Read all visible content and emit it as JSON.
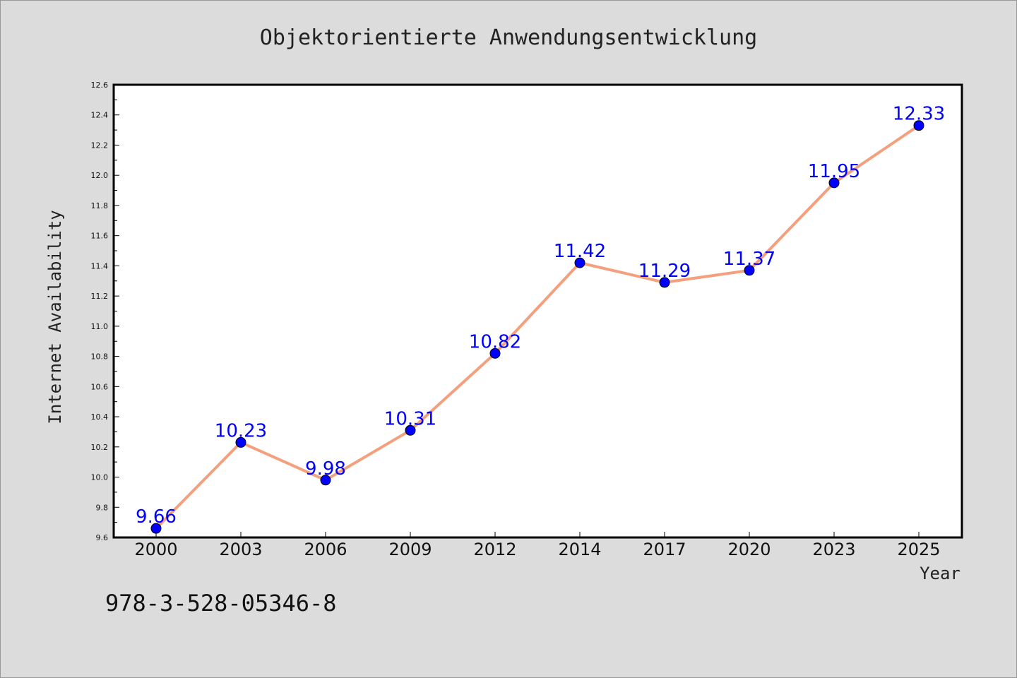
{
  "chart_data": {
    "type": "line",
    "title": "Objektorientierte Anwendungsentwicklung",
    "xlabel": "Year",
    "ylabel": "Internet Availability",
    "categories": [
      "2000",
      "2003",
      "2006",
      "2009",
      "2012",
      "2014",
      "2017",
      "2020",
      "2023",
      "2025"
    ],
    "series": [
      {
        "values": [
          9.66,
          10.23,
          9.98,
          10.31,
          10.82,
          11.42,
          11.29,
          11.37,
          11.95,
          12.33
        ],
        "data_labels": [
          "9.66",
          "10.23",
          "9.98",
          "10.31",
          "10.82",
          "11.42",
          "11.29",
          "11.37",
          "11.95",
          "12.33"
        ]
      }
    ],
    "ylim": [
      9.6,
      12.6
    ],
    "yticks": [
      "9.6",
      "9.8",
      "10.0",
      "10.2",
      "10.4",
      "10.6",
      "10.8",
      "11.0",
      "11.2",
      "11.4",
      "11.6",
      "11.8",
      "12.0",
      "12.2",
      "12.4",
      "12.6"
    ],
    "grid": false,
    "legend": "none",
    "colors": {
      "line": "#f4a07e",
      "marker": "#0000ff",
      "data_label": "#0000ff",
      "background": "#dcdcdc",
      "plot_background": "#ffffff"
    }
  },
  "footer": {
    "isbn": "978-3-528-05346-8"
  }
}
